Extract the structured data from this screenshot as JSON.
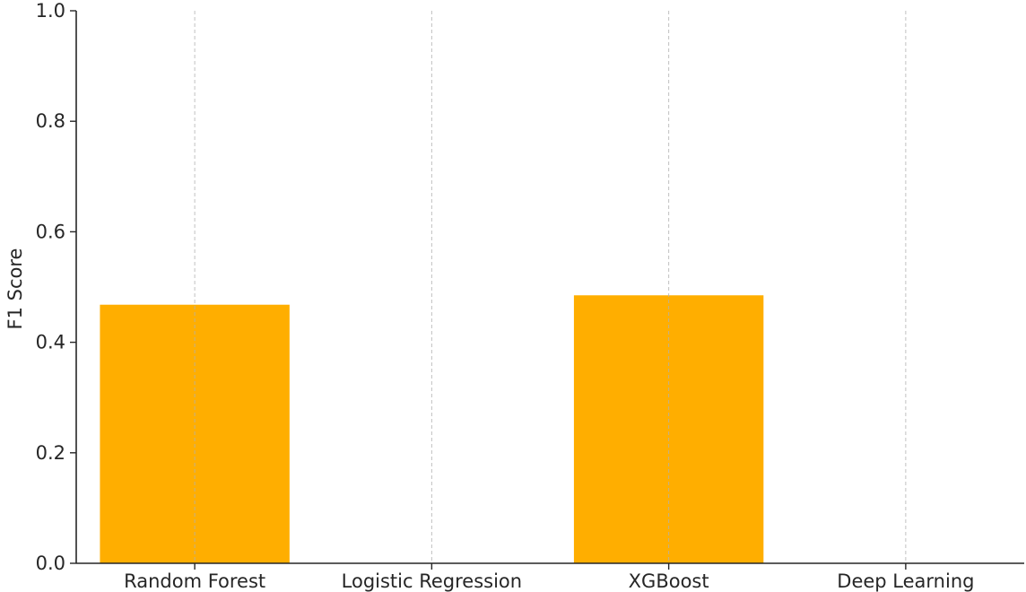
{
  "chart_data": {
    "type": "bar",
    "categories": [
      "Random Forest",
      "Logistic Regression",
      "XGBoost",
      "Deep Learning"
    ],
    "values": [
      0.468,
      0,
      0.485,
      0
    ],
    "xlabel": "",
    "ylabel": "F1 Score",
    "ylim": [
      0,
      1.0
    ],
    "yticks": [
      "0.0",
      "0.2",
      "0.4",
      "0.6",
      "0.8",
      "1.0"
    ],
    "grid": "x-dashed",
    "bar_color": "#FFAE00",
    "legend": "none"
  }
}
